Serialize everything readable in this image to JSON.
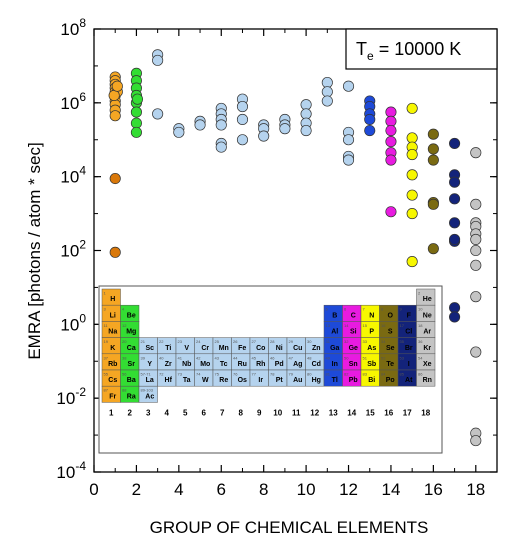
{
  "chart_data": {
    "type": "scatter",
    "xlabel": "GROUP OF CHEMICAL ELEMENTS",
    "ylabel": "EMRA [photons / atom * sec]",
    "xlim": [
      0,
      19
    ],
    "ylim_log10": [
      -4,
      8
    ],
    "y_scale": "log",
    "x_ticks": [
      0,
      2,
      4,
      6,
      8,
      10,
      12,
      14,
      16,
      18
    ],
    "x_minor_ticks": [
      1,
      3,
      5,
      7,
      9,
      11,
      13,
      15,
      17,
      19
    ],
    "y_ticks": [
      {
        "exp": "-4",
        "log": -4
      },
      {
        "exp": "-2",
        "log": -2
      },
      {
        "exp": "0",
        "log": 0
      },
      {
        "exp": "2",
        "log": 2
      },
      {
        "exp": "4",
        "log": 4
      },
      {
        "exp": "6",
        "log": 6
      },
      {
        "exp": "8",
        "log": 8
      }
    ],
    "legend_box": {
      "main": "T",
      "sub": "e",
      "rest": " = 10000 K"
    },
    "legend_position": "top-right",
    "group_colors": {
      "1": "#f5a623",
      "2": "#33dd33",
      "3": "#b5d3ee",
      "4": "#b5d3ee",
      "5": "#b5d3ee",
      "6": "#b5d3ee",
      "7": "#b5d3ee",
      "8": "#b5d3ee",
      "9": "#b5d3ee",
      "10": "#b5d3ee",
      "11": "#b5d3ee",
      "12": "#b5d3ee",
      "13": "#1e4ad8",
      "14": "#e81be0",
      "15": "#f7f700",
      "16": "#7a6a12",
      "17": "#13237a",
      "18": "#c4c4c4"
    },
    "special_colors": {
      "group1_low": "#d9780a",
      "group3_alt": "#b5d3ee"
    },
    "series": [
      {
        "group": 1,
        "points": [
          [
            1,
            6.7
          ],
          [
            1,
            6.6
          ],
          [
            1,
            6.5
          ],
          [
            1,
            6.4
          ],
          [
            1,
            6.3
          ],
          [
            1,
            6.2
          ],
          [
            1,
            6.05
          ],
          [
            1,
            5.95
          ],
          [
            1,
            5.8
          ],
          [
            1,
            5.65
          ],
          [
            1.1,
            6.3
          ],
          [
            0.95,
            6.2
          ],
          [
            1.1,
            6.45
          ],
          [
            1,
            3.95
          ],
          [
            1,
            1.95
          ]
        ]
      },
      {
        "group": 2,
        "points": [
          [
            2,
            6.8
          ],
          [
            2,
            6.6
          ],
          [
            2,
            6.4
          ],
          [
            2,
            6.2
          ],
          [
            2,
            6.0
          ],
          [
            2,
            5.75
          ],
          [
            2,
            5.45
          ],
          [
            2,
            5.2
          ],
          [
            2.05,
            6.1
          ]
        ]
      },
      {
        "group": 3,
        "points": [
          [
            3,
            7.3
          ],
          [
            3,
            7.15
          ],
          [
            3,
            5.7
          ]
        ]
      },
      {
        "group": 4,
        "points": [
          [
            4,
            5.3
          ],
          [
            4,
            5.2
          ]
        ]
      },
      {
        "group": 5,
        "points": [
          [
            5,
            5.5
          ],
          [
            5,
            5.4
          ]
        ]
      },
      {
        "group": 6,
        "points": [
          [
            6,
            5.85
          ],
          [
            6,
            5.7
          ],
          [
            6,
            5.55
          ],
          [
            6,
            5.4
          ],
          [
            6,
            4.9
          ],
          [
            6,
            4.8
          ]
        ]
      },
      {
        "group": 7,
        "points": [
          [
            7,
            6.1
          ],
          [
            7,
            5.9
          ],
          [
            7,
            5.55
          ],
          [
            7,
            5.0
          ]
        ]
      },
      {
        "group": 8,
        "points": [
          [
            8,
            5.4
          ],
          [
            8,
            5.3
          ],
          [
            8,
            5.1
          ]
        ]
      },
      {
        "group": 9,
        "points": [
          [
            9,
            5.55
          ],
          [
            9,
            5.4
          ],
          [
            9,
            5.3
          ]
        ]
      },
      {
        "group": 10,
        "points": [
          [
            10,
            5.95
          ],
          [
            10,
            5.7
          ],
          [
            10,
            5.45
          ],
          [
            10,
            5.25
          ]
        ]
      },
      {
        "group": 11,
        "points": [
          [
            11,
            6.55
          ],
          [
            11,
            6.3
          ],
          [
            11,
            6.05
          ]
        ]
      },
      {
        "group": 12,
        "points": [
          [
            12,
            6.45
          ],
          [
            12,
            5.2
          ],
          [
            12,
            5.0
          ],
          [
            12,
            4.55
          ],
          [
            12,
            4.45
          ]
        ]
      },
      {
        "group": 13,
        "points": [
          [
            13,
            6.05
          ],
          [
            13,
            5.9
          ],
          [
            13,
            5.7
          ],
          [
            13,
            5.55
          ],
          [
            13,
            5.25
          ]
        ]
      },
      {
        "group": 14,
        "points": [
          [
            14,
            5.75
          ],
          [
            14,
            5.5
          ],
          [
            14,
            5.25
          ],
          [
            14,
            4.95
          ],
          [
            14,
            4.65
          ],
          [
            14,
            4.45
          ],
          [
            14,
            3.05
          ]
        ]
      },
      {
        "group": 15,
        "points": [
          [
            15,
            5.85
          ],
          [
            15,
            5.05
          ],
          [
            15,
            4.8
          ],
          [
            15,
            4.6
          ],
          [
            15,
            4.05
          ],
          [
            15,
            3.5
          ],
          [
            15,
            3.0
          ],
          [
            15,
            1.7
          ]
        ]
      },
      {
        "group": 16,
        "points": [
          [
            16,
            5.15
          ],
          [
            16,
            4.75
          ],
          [
            16,
            4.45
          ],
          [
            16,
            3.3
          ],
          [
            16,
            3.25
          ],
          [
            16,
            2.05
          ]
        ]
      },
      {
        "group": 17,
        "points": [
          [
            17,
            4.9
          ],
          [
            17,
            4.05
          ],
          [
            17,
            3.85
          ],
          [
            17,
            3.4
          ],
          [
            17,
            2.75
          ],
          [
            17,
            2.25
          ],
          [
            17,
            2.3
          ],
          [
            17,
            0.45
          ],
          [
            17,
            0.2
          ]
        ]
      },
      {
        "group": 18,
        "points": [
          [
            18,
            4.65
          ],
          [
            18,
            3.25
          ],
          [
            18,
            2.75
          ],
          [
            18,
            2.65
          ],
          [
            18,
            2.45
          ],
          [
            18,
            2.3
          ],
          [
            18,
            2.0
          ],
          [
            18,
            1.6
          ],
          [
            18,
            0.75
          ],
          [
            18,
            -0.75
          ],
          [
            18,
            -2.95
          ],
          [
            18,
            -3.15
          ]
        ]
      }
    ],
    "periodic_table": {
      "group_numbers": [
        "1",
        "2",
        "3",
        "4",
        "5",
        "6",
        "7",
        "8",
        "9",
        "10",
        "11",
        "12",
        "13",
        "14",
        "15",
        "16",
        "17",
        "18"
      ],
      "cells": [
        {
          "num": "1",
          "sym": "H",
          "g": 1,
          "p": 1
        },
        {
          "num": "2",
          "sym": "He",
          "g": 18,
          "p": 1
        },
        {
          "num": "3",
          "sym": "Li",
          "g": 1,
          "p": 2
        },
        {
          "num": "4",
          "sym": "Be",
          "g": 2,
          "p": 2
        },
        {
          "num": "5",
          "sym": "B",
          "g": 13,
          "p": 2
        },
        {
          "num": "6",
          "sym": "C",
          "g": 14,
          "p": 2
        },
        {
          "num": "7",
          "sym": "N",
          "g": 15,
          "p": 2
        },
        {
          "num": "8",
          "sym": "O",
          "g": 16,
          "p": 2
        },
        {
          "num": "9",
          "sym": "F",
          "g": 17,
          "p": 2
        },
        {
          "num": "10",
          "sym": "Ne",
          "g": 18,
          "p": 2
        },
        {
          "num": "11",
          "sym": "Na",
          "g": 1,
          "p": 3
        },
        {
          "num": "12",
          "sym": "Mg",
          "g": 2,
          "p": 3
        },
        {
          "num": "13",
          "sym": "Al",
          "g": 13,
          "p": 3
        },
        {
          "num": "14",
          "sym": "Si",
          "g": 14,
          "p": 3
        },
        {
          "num": "15",
          "sym": "P",
          "g": 15,
          "p": 3
        },
        {
          "num": "16",
          "sym": "S",
          "g": 16,
          "p": 3
        },
        {
          "num": "17",
          "sym": "Cl",
          "g": 17,
          "p": 3
        },
        {
          "num": "18",
          "sym": "Ar",
          "g": 18,
          "p": 3
        },
        {
          "num": "19",
          "sym": "K",
          "g": 1,
          "p": 4
        },
        {
          "num": "20",
          "sym": "Ca",
          "g": 2,
          "p": 4
        },
        {
          "num": "21",
          "sym": "Sc",
          "g": 3,
          "p": 4
        },
        {
          "num": "22",
          "sym": "Ti",
          "g": 4,
          "p": 4
        },
        {
          "num": "23",
          "sym": "V",
          "g": 5,
          "p": 4
        },
        {
          "num": "24",
          "sym": "Cr",
          "g": 6,
          "p": 4
        },
        {
          "num": "25",
          "sym": "Mn",
          "g": 7,
          "p": 4
        },
        {
          "num": "26",
          "sym": "Fe",
          "g": 8,
          "p": 4
        },
        {
          "num": "27",
          "sym": "Co",
          "g": 9,
          "p": 4
        },
        {
          "num": "28",
          "sym": "Ni",
          "g": 10,
          "p": 4
        },
        {
          "num": "29",
          "sym": "Cu",
          "g": 11,
          "p": 4
        },
        {
          "num": "30",
          "sym": "Zn",
          "g": 12,
          "p": 4
        },
        {
          "num": "31",
          "sym": "Ga",
          "g": 13,
          "p": 4
        },
        {
          "num": "32",
          "sym": "Ge",
          "g": 14,
          "p": 4
        },
        {
          "num": "33",
          "sym": "As",
          "g": 15,
          "p": 4
        },
        {
          "num": "34",
          "sym": "Se",
          "g": 16,
          "p": 4
        },
        {
          "num": "35",
          "sym": "Br",
          "g": 17,
          "p": 4
        },
        {
          "num": "36",
          "sym": "Kr",
          "g": 18,
          "p": 4
        },
        {
          "num": "37",
          "sym": "Rb",
          "g": 1,
          "p": 5
        },
        {
          "num": "38",
          "sym": "Sr",
          "g": 2,
          "p": 5
        },
        {
          "num": "39",
          "sym": "Y",
          "g": 3,
          "p": 5
        },
        {
          "num": "40",
          "sym": "Zr",
          "g": 4,
          "p": 5
        },
        {
          "num": "41",
          "sym": "Nb",
          "g": 5,
          "p": 5
        },
        {
          "num": "42",
          "sym": "Mo",
          "g": 6,
          "p": 5
        },
        {
          "num": "43",
          "sym": "Tc",
          "g": 7,
          "p": 5
        },
        {
          "num": "44",
          "sym": "Ru",
          "g": 8,
          "p": 5
        },
        {
          "num": "45",
          "sym": "Rh",
          "g": 9,
          "p": 5
        },
        {
          "num": "46",
          "sym": "Pd",
          "g": 10,
          "p": 5
        },
        {
          "num": "47",
          "sym": "Ag",
          "g": 11,
          "p": 5
        },
        {
          "num": "48",
          "sym": "Cd",
          "g": 12,
          "p": 5
        },
        {
          "num": "49",
          "sym": "In",
          "g": 13,
          "p": 5
        },
        {
          "num": "50",
          "sym": "Sn",
          "g": 14,
          "p": 5
        },
        {
          "num": "51",
          "sym": "Sb",
          "g": 15,
          "p": 5
        },
        {
          "num": "52",
          "sym": "Te",
          "g": 16,
          "p": 5
        },
        {
          "num": "53",
          "sym": "I",
          "g": 17,
          "p": 5
        },
        {
          "num": "54",
          "sym": "Xe",
          "g": 18,
          "p": 5
        },
        {
          "num": "55",
          "sym": "Cs",
          "g": 1,
          "p": 6
        },
        {
          "num": "56",
          "sym": "Ba",
          "g": 2,
          "p": 6
        },
        {
          "num": "57-71",
          "sym": "La",
          "g": 3,
          "p": 6
        },
        {
          "num": "72",
          "sym": "Hf",
          "g": 4,
          "p": 6
        },
        {
          "num": "73",
          "sym": "Ta",
          "g": 5,
          "p": 6
        },
        {
          "num": "74",
          "sym": "W",
          "g": 6,
          "p": 6
        },
        {
          "num": "75",
          "sym": "Re",
          "g": 7,
          "p": 6
        },
        {
          "num": "76",
          "sym": "Os",
          "g": 8,
          "p": 6
        },
        {
          "num": "77",
          "sym": "Ir",
          "g": 9,
          "p": 6
        },
        {
          "num": "78",
          "sym": "Pt",
          "g": 10,
          "p": 6
        },
        {
          "num": "79",
          "sym": "Au",
          "g": 11,
          "p": 6
        },
        {
          "num": "80",
          "sym": "Hg",
          "g": 12,
          "p": 6
        },
        {
          "num": "81",
          "sym": "Tl",
          "g": 13,
          "p": 6
        },
        {
          "num": "82",
          "sym": "Pb",
          "g": 14,
          "p": 6
        },
        {
          "num": "83",
          "sym": "Bi",
          "g": 15,
          "p": 6
        },
        {
          "num": "84",
          "sym": "Po",
          "g": 16,
          "p": 6
        },
        {
          "num": "85",
          "sym": "At",
          "g": 17,
          "p": 6
        },
        {
          "num": "86",
          "sym": "Rn",
          "g": 18,
          "p": 6
        },
        {
          "num": "87",
          "sym": "Fr",
          "g": 1,
          "p": 7
        },
        {
          "num": "88",
          "sym": "Ra",
          "g": 2,
          "p": 7
        },
        {
          "num": "89-103",
          "sym": "Ac",
          "g": 3,
          "p": 7
        }
      ]
    }
  }
}
